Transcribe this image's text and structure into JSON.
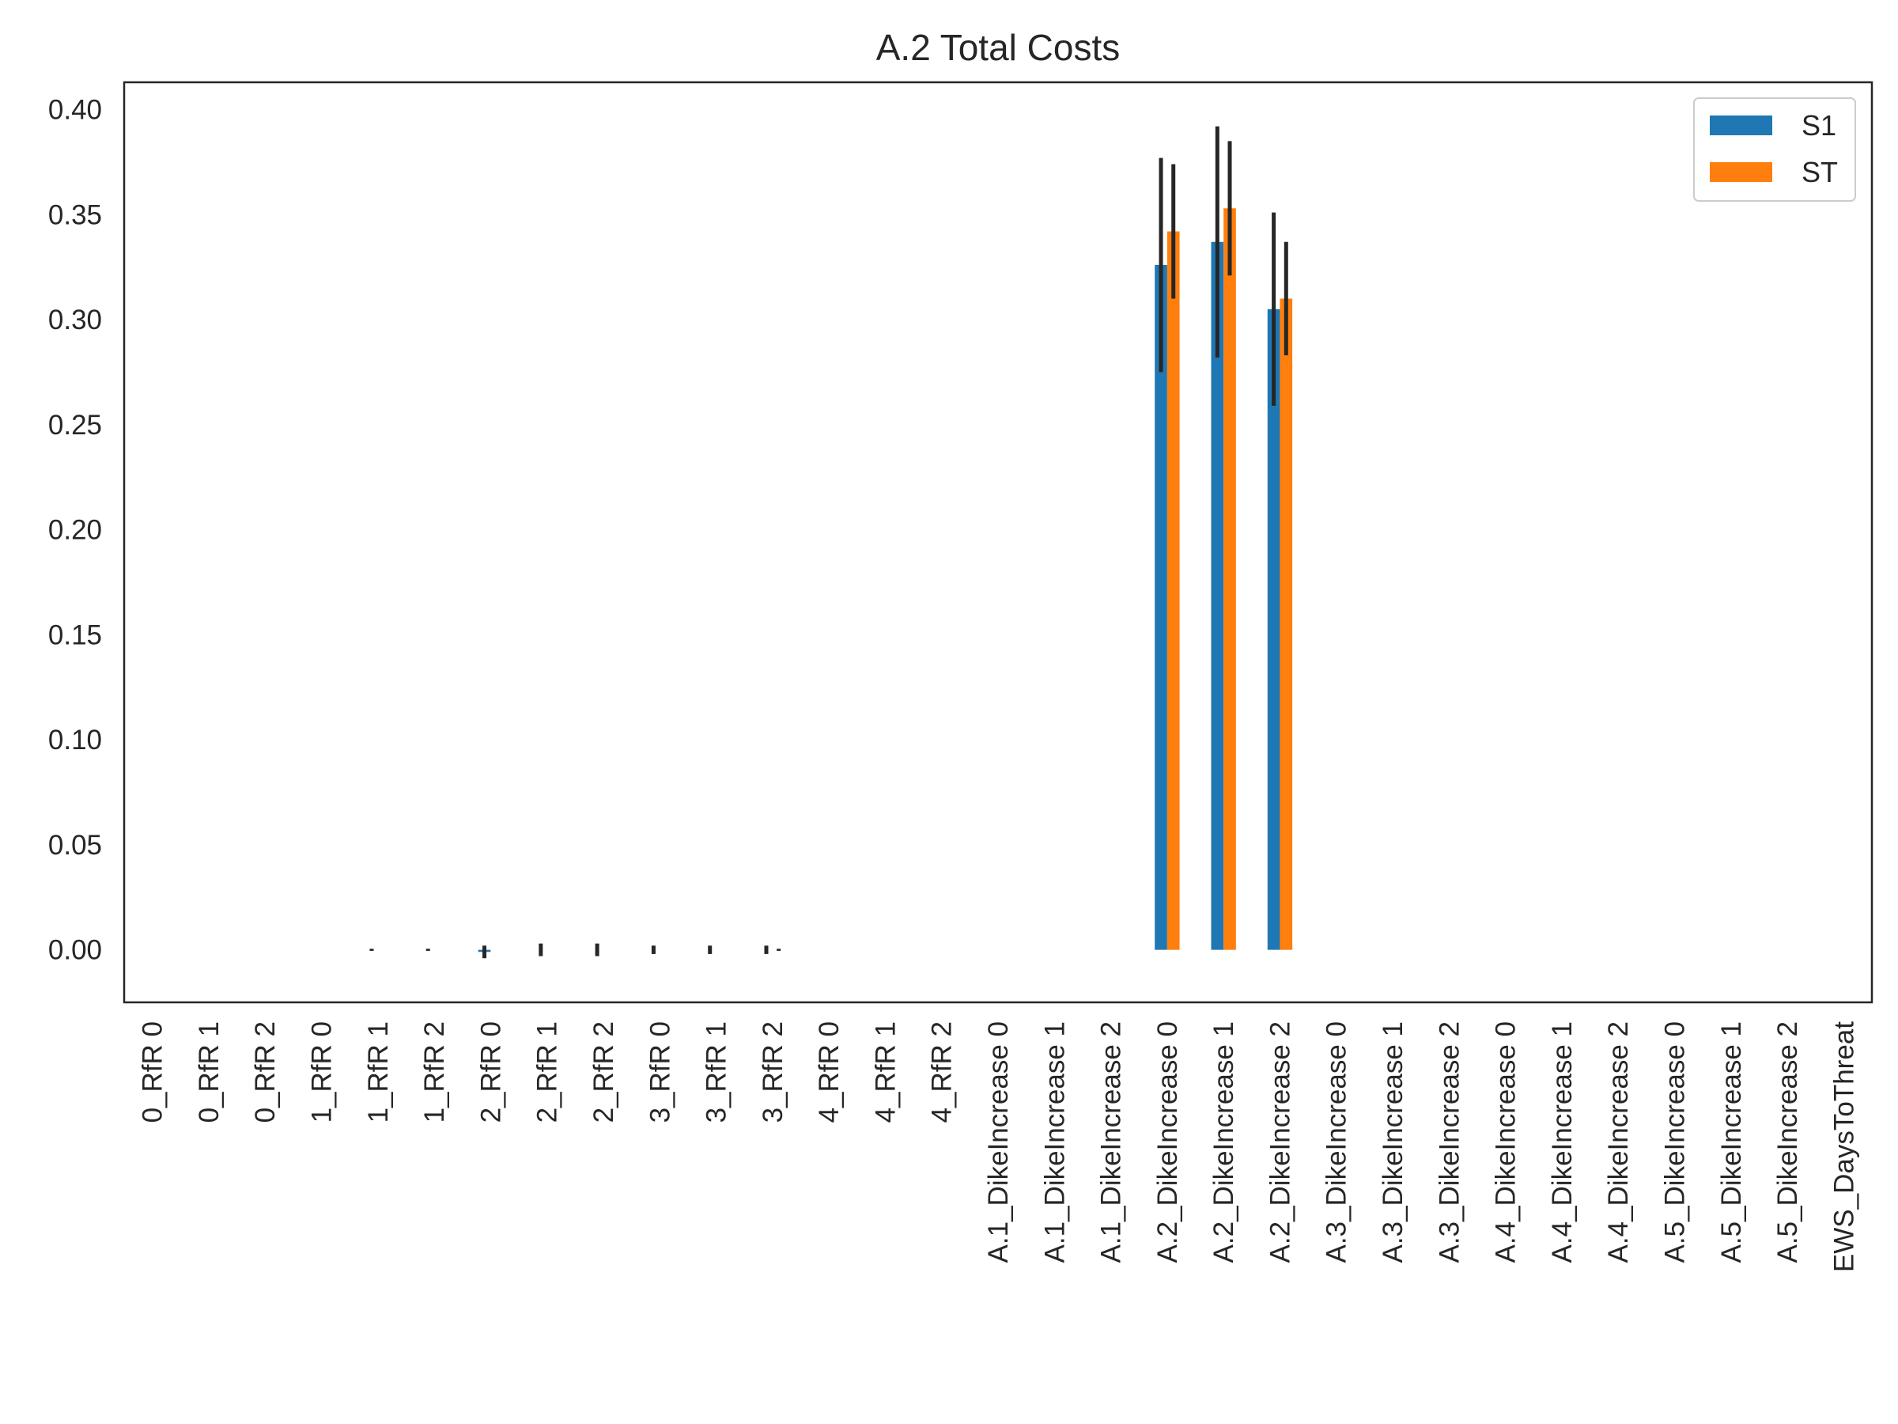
{
  "chart_data": {
    "type": "bar",
    "title": "A.2 Total Costs",
    "xlabel": "",
    "ylabel": "",
    "ylim": [
      -0.025,
      0.413
    ],
    "yticks": [
      "0.00",
      "0.05",
      "0.10",
      "0.15",
      "0.20",
      "0.25",
      "0.30",
      "0.35",
      "0.40"
    ],
    "grid": false,
    "legend_position": "top-right",
    "categories": [
      "0_RfR 0",
      "0_RfR 1",
      "0_RfR 2",
      "1_RfR 0",
      "1_RfR 1",
      "1_RfR 2",
      "2_RfR 0",
      "2_RfR 1",
      "2_RfR 2",
      "3_RfR 0",
      "3_RfR 1",
      "3_RfR 2",
      "4_RfR 0",
      "4_RfR 1",
      "4_RfR 2",
      "A.1_DikeIncrease 0",
      "A.1_DikeIncrease 1",
      "A.1_DikeIncrease 2",
      "A.2_DikeIncrease 0",
      "A.2_DikeIncrease 1",
      "A.2_DikeIncrease 2",
      "A.3_DikeIncrease 0",
      "A.3_DikeIncrease 1",
      "A.3_DikeIncrease 2",
      "A.4_DikeIncrease 0",
      "A.4_DikeIncrease 1",
      "A.4_DikeIncrease 2",
      "A.5_DikeIncrease 0",
      "A.5_DikeIncrease 1",
      "A.5_DikeIncrease 2",
      "EWS_DaysToThreat"
    ],
    "series": [
      {
        "name": "S1",
        "color": "#1f77b4",
        "values": [
          0,
          0,
          0,
          0,
          0,
          0,
          -0.001,
          0,
          0,
          0,
          0,
          0,
          0,
          0,
          0,
          0,
          0,
          0,
          0.326,
          0.337,
          0.305,
          0,
          0,
          0,
          0,
          0,
          0,
          0,
          0,
          0,
          0
        ],
        "conf": [
          0,
          0,
          0,
          0,
          0.0005,
          0.0005,
          0.003,
          0.003,
          0.003,
          0.002,
          0.002,
          0.002,
          0,
          0,
          0,
          0,
          0,
          0,
          0.051,
          0.055,
          0.046,
          0,
          0,
          0,
          0,
          0,
          0,
          0,
          0,
          0,
          0
        ]
      },
      {
        "name": "ST",
        "color": "#ff7f0e",
        "values": [
          0,
          0,
          0,
          0,
          0,
          0,
          0,
          0,
          0,
          0,
          0,
          0,
          0,
          0,
          0,
          0,
          0,
          0,
          0.342,
          0.353,
          0.31,
          0,
          0,
          0,
          0,
          0,
          0,
          0,
          0,
          0,
          0
        ],
        "conf": [
          0,
          0,
          0,
          0,
          0,
          0,
          0,
          0,
          0,
          0,
          0,
          0.0005,
          0,
          0,
          0,
          0,
          0,
          0,
          0.032,
          0.032,
          0.027,
          0,
          0,
          0,
          0,
          0,
          0,
          0,
          0,
          0,
          0
        ]
      }
    ]
  }
}
